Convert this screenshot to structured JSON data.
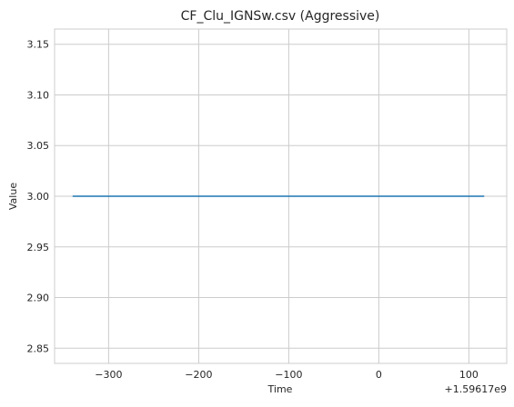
{
  "chart_data": {
    "type": "line",
    "title": "CF_Clu_IGNSw.csv (Aggressive)",
    "xlabel": "Time",
    "ylabel": "Value",
    "x_offset_label": "+1.59617e9",
    "xlim": [
      -360,
      142
    ],
    "ylim": [
      2.835,
      3.165
    ],
    "xticks": [
      -300,
      -200,
      -100,
      0,
      100
    ],
    "xtick_labels": [
      "−300",
      "−200",
      "−100",
      "0",
      "100"
    ],
    "yticks": [
      2.85,
      2.9,
      2.95,
      3.0,
      3.05,
      3.1,
      3.15
    ],
    "ytick_labels": [
      "2.85",
      "2.90",
      "2.95",
      "3.00",
      "3.05",
      "3.10",
      "3.15"
    ],
    "grid": true,
    "series": [
      {
        "color": "#1f77b4",
        "x": [
          -340,
          117
        ],
        "y": [
          3.0,
          3.0
        ]
      }
    ]
  }
}
